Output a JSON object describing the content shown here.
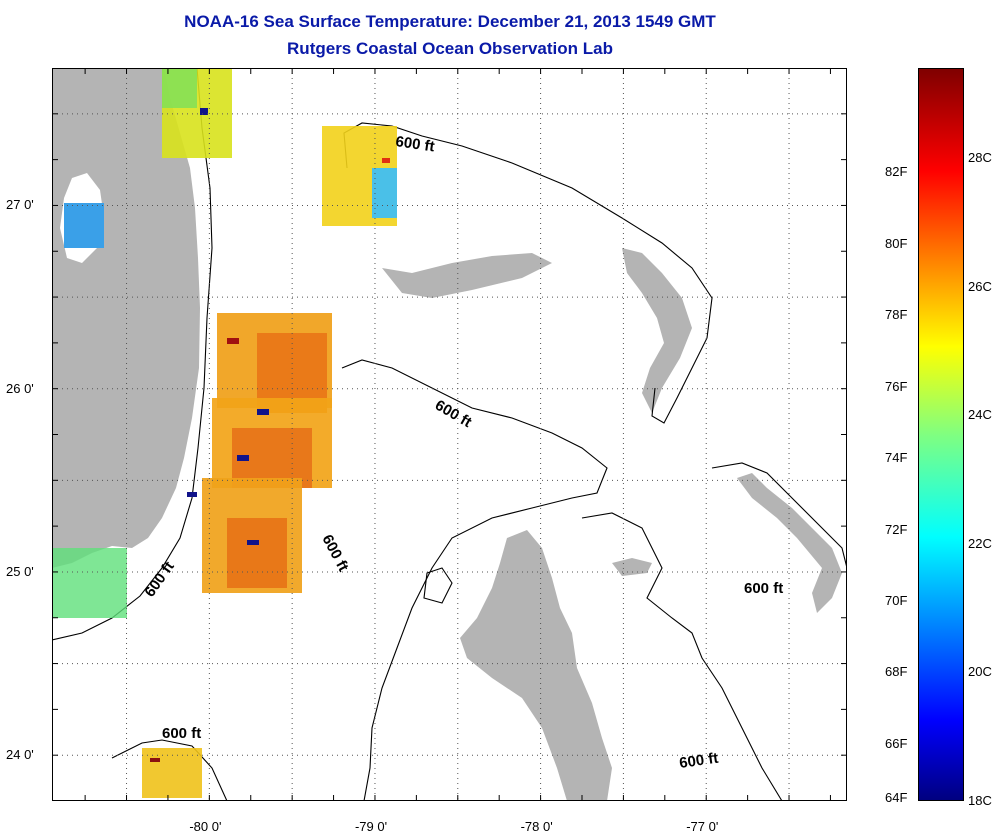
{
  "title": "NOAA-16 Sea Surface Temperature:  December 21, 2013 1549 GMT",
  "subtitle": "Rutgers Coastal Ocean Observation Lab",
  "map": {
    "lon_range": [
      -80.95,
      -76.15
    ],
    "lat_range": [
      23.75,
      27.75
    ],
    "lon_ticks": [
      {
        "value": -80,
        "label": "-80 0'"
      },
      {
        "value": -79,
        "label": "-79 0'"
      },
      {
        "value": -78,
        "label": "-78 0'"
      },
      {
        "value": -77,
        "label": "-77 0'"
      }
    ],
    "lat_ticks": [
      {
        "value": 27,
        "label": "27 0'"
      },
      {
        "value": 26,
        "label": "26 0'"
      },
      {
        "value": 25,
        "label": "25 0'"
      },
      {
        "value": 24,
        "label": "24 0'"
      }
    ],
    "grid": true,
    "contour_label": "600 ft",
    "land_color": "#b4b4b4"
  },
  "colorbar": {
    "min_c": 18,
    "max_c": 29.4,
    "fahrenheit_labels": [
      "82F",
      "80F",
      "78F",
      "76F",
      "74F",
      "72F",
      "70F",
      "68F",
      "66F",
      "64F"
    ],
    "celsius_labels": [
      "28C",
      "26C",
      "24C",
      "22C",
      "20C",
      "18C"
    ]
  }
}
